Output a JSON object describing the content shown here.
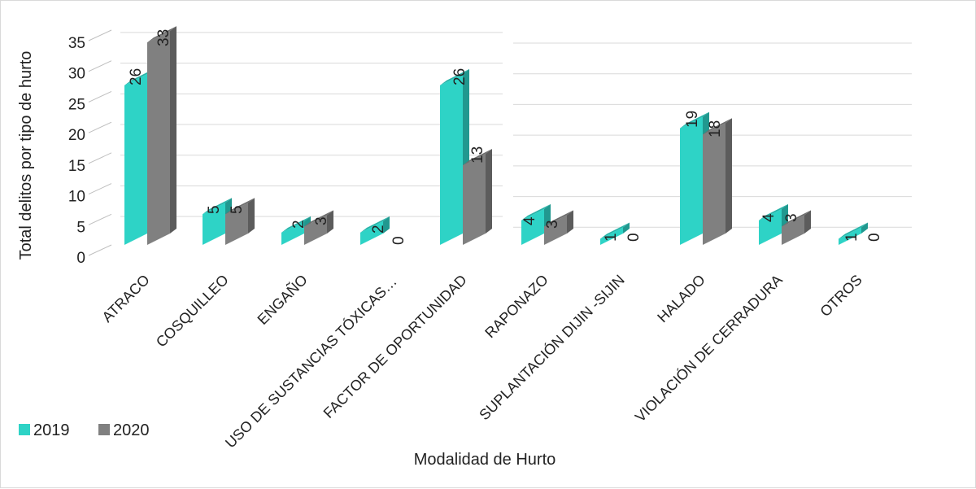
{
  "chart_data": {
    "type": "bar",
    "title": "",
    "xlabel": "Modalidad de Hurto",
    "ylabel": "Total delitos por tipo de hurto",
    "ylim": [
      0,
      35
    ],
    "yticks": [
      "0",
      "5",
      "10",
      "15",
      "20",
      "25",
      "30",
      "35"
    ],
    "grid": true,
    "legend_position": "bottom-left",
    "categories": [
      "ATRACO",
      "COSQUILLEO",
      "ENGAÑO",
      "USO DE SUSTANCIAS TÓXICAS…",
      "FACTOR DE OPORTUNIDAD",
      "RAPONAZO",
      "SUPLANTACIÓN DIJIN -SIJIN",
      "HALADO",
      "VIOLACIÓN DE CERRADURA",
      "OTROS"
    ],
    "series": [
      {
        "name": "2019",
        "color": "#2ed3c6",
        "values": [
          26,
          5,
          2,
          2,
          26,
          4,
          1,
          19,
          4,
          1
        ]
      },
      {
        "name": "2020",
        "color": "#808080",
        "values": [
          33,
          5,
          3,
          0,
          13,
          3,
          0,
          18,
          3,
          0
        ]
      }
    ]
  }
}
